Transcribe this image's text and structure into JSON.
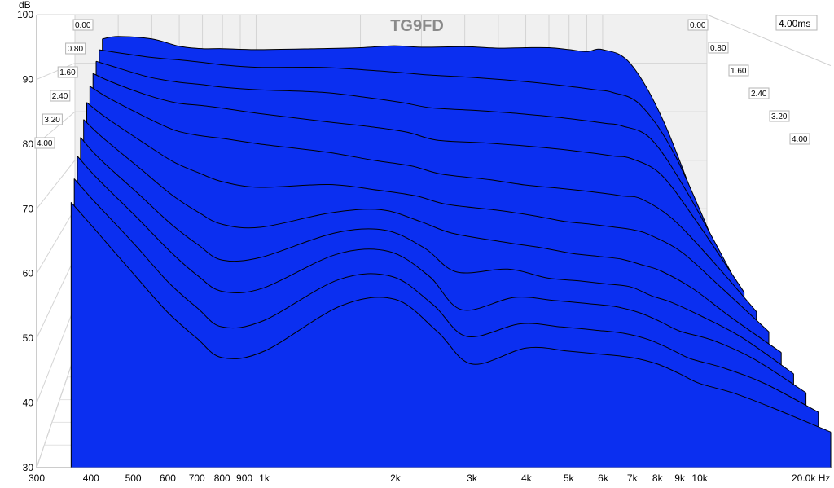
{
  "chart_data": {
    "type": "waterfall",
    "title": "TG9FD",
    "ylabel": "dB",
    "xunit": "Hz",
    "ylim": [
      30,
      100
    ],
    "xlim": [
      300,
      20000
    ],
    "xscale": "log",
    "y_ticks": [
      "100",
      "90",
      "80",
      "70",
      "60",
      "50",
      "40",
      "30"
    ],
    "x_ticks": [
      {
        "value": 300,
        "label": "300"
      },
      {
        "value": 400,
        "label": "400"
      },
      {
        "value": 500,
        "label": "500"
      },
      {
        "value": 600,
        "label": "600"
      },
      {
        "value": 700,
        "label": "700"
      },
      {
        "value": 800,
        "label": "800"
      },
      {
        "value": 900,
        "label": "900"
      },
      {
        "value": 1000,
        "label": "1k"
      },
      {
        "value": 2000,
        "label": "2k"
      },
      {
        "value": 3000,
        "label": "3k"
      },
      {
        "value": 4000,
        "label": "4k"
      },
      {
        "value": 5000,
        "label": "5k"
      },
      {
        "value": 6000,
        "label": "6k"
      },
      {
        "value": 7000,
        "label": "7k"
      },
      {
        "value": 8000,
        "label": "8k"
      },
      {
        "value": 9000,
        "label": "9k"
      },
      {
        "value": 10000,
        "label": "10k"
      },
      {
        "value": 20000,
        "label": "20.0k Hz"
      }
    ],
    "time_unit": "ms",
    "time_max_label": "4.00ms",
    "time_labels": [
      "0.00",
      "0.80",
      "1.60",
      "2.40",
      "3.20",
      "4.00"
    ],
    "series": [
      {
        "time_ms": 0.0,
        "freq": [
          360,
          400,
          500,
          600,
          700,
          800,
          1000,
          1500,
          2000,
          2500,
          3000,
          4000,
          5000,
          6000,
          7000,
          8000,
          9000,
          10000,
          12000,
          15000,
          20000
        ],
        "db": [
          95,
          95.5,
          95,
          93.5,
          93,
          93,
          92.8,
          93,
          93.2,
          93.6,
          93.3,
          93.4,
          93.1,
          93.2,
          93.2,
          92.8,
          92.4,
          92.8,
          90,
          78,
          55
        ]
      },
      {
        "time_ms": 0.4,
        "freq": [
          360,
          400,
          500,
          600,
          700,
          800,
          1000,
          1500,
          2000,
          2500,
          3000,
          4000,
          5000,
          6000,
          7000,
          8000,
          9000,
          10000,
          12000,
          15000,
          20000
        ],
        "db": [
          93,
          92.5,
          91.5,
          91,
          90.5,
          90,
          89.5,
          89.5,
          89,
          88.5,
          88,
          87.5,
          87,
          86.5,
          86,
          85.5,
          85,
          84.5,
          82,
          72,
          52
        ]
      },
      {
        "time_ms": 0.8,
        "freq": [
          360,
          400,
          500,
          600,
          700,
          800,
          1000,
          1500,
          2000,
          2500,
          3000,
          4000,
          5000,
          6000,
          7000,
          8000,
          9000,
          10000,
          12000,
          15000,
          20000
        ],
        "db": [
          91,
          90,
          88,
          87,
          86.5,
          86,
          85.5,
          85,
          84,
          83,
          82,
          81.5,
          81,
          80.5,
          80,
          79.5,
          79,
          78.5,
          76,
          66,
          50
        ]
      },
      {
        "time_ms": 1.2,
        "freq": [
          360,
          400,
          500,
          600,
          700,
          800,
          1000,
          1500,
          2000,
          2500,
          3000,
          4000,
          5000,
          6000,
          7000,
          8000,
          9000,
          10000,
          12000,
          15000,
          20000
        ],
        "db": [
          89,
          87.5,
          85,
          83.5,
          83,
          82.5,
          81.5,
          80,
          79,
          78,
          76.5,
          76,
          75.5,
          75,
          74.5,
          74,
          73.5,
          73,
          70,
          61,
          48
        ]
      },
      {
        "time_ms": 1.6,
        "freq": [
          360,
          400,
          500,
          600,
          700,
          800,
          1000,
          1500,
          2000,
          2500,
          3000,
          4000,
          5000,
          6000,
          7000,
          8000,
          9000,
          10000,
          12000,
          15000,
          20000
        ],
        "db": [
          87,
          85,
          81.5,
          79,
          78,
          77.5,
          76.5,
          75,
          73.5,
          72.5,
          71,
          70,
          69,
          68.5,
          68,
          67.5,
          67,
          66.5,
          63,
          56,
          46
        ]
      },
      {
        "time_ms": 2.0,
        "freq": [
          360,
          400,
          500,
          600,
          700,
          800,
          1000,
          1500,
          2000,
          2500,
          3000,
          4000,
          5000,
          6000,
          7000,
          8000,
          9000,
          10000,
          12000,
          15000,
          20000
        ],
        "db": [
          84.5,
          82,
          77.5,
          74,
          72,
          70.5,
          69.5,
          70,
          69,
          68,
          66.5,
          65.5,
          64.5,
          63.5,
          63,
          62.5,
          62,
          61,
          58,
          52,
          44
        ]
      },
      {
        "time_ms": 2.4,
        "freq": [
          360,
          400,
          500,
          600,
          700,
          800,
          1000,
          1500,
          2000,
          2500,
          3000,
          4000,
          5000,
          6000,
          7000,
          8000,
          9000,
          10000,
          12000,
          15000,
          20000
        ],
        "db": [
          82,
          79,
          73.5,
          69,
          66,
          64,
          63.5,
          66,
          66.5,
          64.5,
          62.5,
          61,
          60,
          59,
          58.5,
          58,
          57,
          56,
          53,
          48,
          42
        ]
      },
      {
        "time_ms": 2.8,
        "freq": [
          360,
          400,
          500,
          600,
          700,
          800,
          1000,
          1500,
          2000,
          2500,
          3000,
          4000,
          5000,
          6000,
          7000,
          8000,
          9000,
          10000,
          12000,
          15000,
          20000
        ],
        "db": [
          79.5,
          76,
          70,
          65,
          61.5,
          59,
          59.5,
          63.5,
          64,
          61,
          57,
          57.5,
          56,
          55.5,
          55,
          54.5,
          53,
          52,
          49.5,
          46,
          40
        ]
      },
      {
        "time_ms": 3.2,
        "freq": [
          360,
          400,
          500,
          600,
          700,
          800,
          1000,
          1500,
          2000,
          2500,
          3000,
          4000,
          5000,
          6000,
          7000,
          8000,
          9000,
          10000,
          12000,
          15000,
          20000
        ],
        "db": [
          77,
          73.5,
          67,
          61.5,
          57.5,
          55,
          55.5,
          61,
          61.5,
          57.5,
          52,
          54,
          53.5,
          53,
          52.5,
          51.5,
          50,
          48.5,
          47,
          44,
          38.5
        ]
      },
      {
        "time_ms": 3.6,
        "freq": [
          360,
          400,
          500,
          600,
          700,
          800,
          1000,
          1500,
          2000,
          2500,
          3000,
          4000,
          5000,
          6000,
          7000,
          8000,
          9000,
          10000,
          12000,
          15000,
          20000
        ],
        "db": [
          74,
          70.5,
          63.5,
          57.5,
          53.5,
          50.5,
          51.5,
          58,
          58.5,
          54,
          49,
          51,
          50.5,
          50,
          49.5,
          48.5,
          47,
          45.5,
          44,
          41.5,
          37
        ]
      },
      {
        "time_ms": 4.0,
        "freq": [
          360,
          400,
          500,
          600,
          700,
          800,
          1000,
          1500,
          2000,
          2500,
          3000,
          4000,
          5000,
          6000,
          7000,
          8000,
          9000,
          10000,
          12000,
          15000,
          20000
        ],
        "db": [
          71,
          67.5,
          60,
          54,
          50,
          47,
          48,
          55,
          56,
          51,
          46,
          48.5,
          48,
          47.5,
          47,
          46,
          44.5,
          43,
          41.5,
          39,
          35.5
        ]
      }
    ]
  }
}
